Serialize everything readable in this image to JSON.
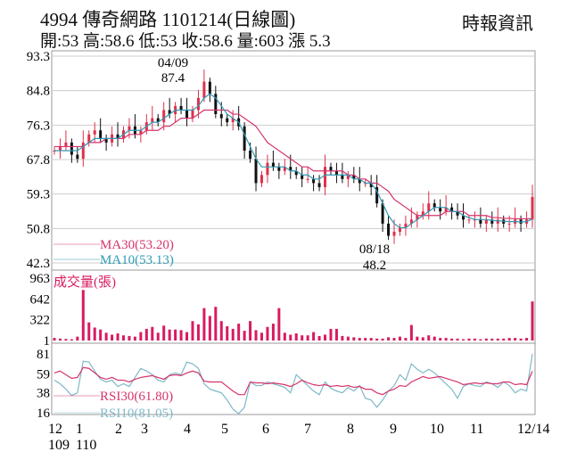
{
  "header": {
    "title": "4994  傳奇網路 1101214(日線圖)",
    "source": "時報資訊",
    "ohlc": "開:53 高:58.6 低:53 收:58.6 量:603 漲 5.3"
  },
  "colors": {
    "up": "#e0304a",
    "down": "#111111",
    "ma30": "#d6336c",
    "ma10": "#2f9bb5",
    "volume": "#d81b60",
    "rsi30": "#d6336c",
    "rsi10": "#7fb8c8",
    "grid": "#cccccc"
  },
  "chart_data": [
    {
      "type": "candlestick",
      "panel": "price",
      "ylim": [
        42.3,
        93.3
      ],
      "yticks": [
        "93.3",
        "84.8",
        "76.3",
        "67.8",
        "59.3",
        "50.8",
        "42.3"
      ],
      "annotations": [
        {
          "date": "04/09",
          "value": "87.4",
          "label_date": "04/09",
          "label_value": "87.4"
        },
        {
          "date": "08/18",
          "value": "48.2",
          "label_date": "08/18",
          "label_value": "48.2"
        }
      ],
      "legend": [
        {
          "name": "MA30(53.20)",
          "key": "ma30"
        },
        {
          "name": "MA10(53.13)",
          "key": "ma10"
        }
      ],
      "close": [
        70,
        71,
        72,
        69,
        68,
        72,
        74,
        75,
        73,
        72,
        74,
        73,
        75,
        76,
        74,
        75,
        77,
        78,
        77,
        80,
        79,
        81,
        80,
        78,
        80,
        83,
        87,
        84,
        79,
        78,
        77,
        78,
        76,
        70,
        68,
        62,
        64,
        67,
        66,
        65,
        66,
        65,
        64,
        63,
        63,
        62,
        61,
        66,
        65,
        64,
        63,
        64,
        63,
        62,
        62,
        61,
        57,
        52,
        49,
        50,
        51,
        52,
        53,
        54,
        55,
        57,
        56,
        55,
        56,
        55,
        54,
        53,
        53,
        53,
        52,
        53,
        52,
        53,
        52,
        52,
        53,
        52,
        53,
        58.6
      ],
      "ma30": [
        71,
        71,
        71,
        71,
        71,
        71,
        72,
        72,
        72,
        73,
        73,
        73,
        73,
        74,
        74,
        74,
        75,
        75,
        75,
        76,
        76,
        77,
        78,
        78,
        78,
        79,
        80,
        80,
        80,
        80,
        80,
        79,
        79,
        78,
        77,
        76,
        74,
        72,
        71,
        70,
        69,
        68,
        67,
        66,
        66,
        65,
        65,
        65,
        65,
        65,
        65,
        64,
        64,
        63,
        63,
        62,
        62,
        61,
        60,
        58,
        57,
        56,
        55,
        54,
        54,
        54,
        54,
        54,
        55,
        55,
        55,
        55,
        54,
        54,
        54,
        54,
        53.5,
        53.5,
        53.3,
        53.3,
        53.2,
        53.2,
        53.2,
        53.2
      ],
      "ma10": [
        70,
        70,
        70,
        70,
        70,
        71,
        72,
        73,
        73,
        73,
        73,
        73,
        74,
        75,
        75,
        75,
        76,
        77,
        77,
        78,
        79,
        80,
        80,
        80,
        80,
        81,
        83,
        84,
        83,
        81,
        79,
        78,
        77,
        74,
        71,
        68,
        66,
        66,
        66,
        66,
        66,
        65,
        65,
        64,
        64,
        63,
        63,
        64,
        64,
        64,
        64,
        64,
        63,
        63,
        62,
        62,
        60,
        57,
        54,
        52,
        51,
        51,
        52,
        53,
        54,
        55,
        56,
        56,
        56,
        55,
        55,
        54,
        53.5,
        53,
        53,
        53,
        52.8,
        52.7,
        52.6,
        52.5,
        52.5,
        52.4,
        52.5,
        53.13
      ]
    },
    {
      "type": "bar",
      "panel": "volume",
      "title": "成交量(張)",
      "ylim": [
        0,
        963
      ],
      "yticks": [
        "963",
        "642",
        "322",
        "1"
      ],
      "values": [
        40,
        30,
        25,
        20,
        60,
        780,
        280,
        200,
        170,
        120,
        90,
        110,
        80,
        70,
        60,
        130,
        180,
        210,
        120,
        230,
        170,
        170,
        160,
        130,
        300,
        250,
        500,
        380,
        520,
        300,
        220,
        180,
        260,
        150,
        300,
        160,
        120,
        210,
        260,
        500,
        120,
        90,
        110,
        80,
        80,
        130,
        70,
        90,
        180,
        180,
        70,
        60,
        50,
        40,
        40,
        40,
        30,
        30,
        50,
        40,
        60,
        40,
        240,
        60,
        50,
        80,
        60,
        40,
        40,
        30,
        30,
        20,
        30,
        30,
        20,
        30,
        30,
        30,
        30,
        40,
        40,
        30,
        40,
        603
      ]
    },
    {
      "type": "line",
      "panel": "rsi",
      "ylim": [
        16,
        81
      ],
      "yticks": [
        "81",
        "59",
        "38",
        "16"
      ],
      "series": [
        {
          "name": "RSI30(61.80)",
          "key": "rsi30",
          "values": [
            60,
            62,
            58,
            54,
            55,
            66,
            65,
            60,
            55,
            53,
            55,
            52,
            52,
            50,
            53,
            55,
            56,
            57,
            55,
            53,
            57,
            58,
            57,
            60,
            62,
            60,
            51,
            50,
            50,
            50,
            45,
            40,
            36,
            36,
            50,
            49,
            49,
            48,
            49,
            48,
            47,
            45,
            48,
            52,
            49,
            47,
            46,
            47,
            45,
            46,
            45,
            46,
            44,
            45,
            42,
            42,
            38,
            36,
            40,
            42,
            46,
            45,
            50,
            53,
            56,
            54,
            55,
            56,
            54,
            52,
            50,
            47,
            48,
            49,
            48,
            49,
            48,
            48,
            50,
            50,
            47,
            48,
            47,
            61.8
          ]
        },
        {
          "name": "RSI10(81.05)",
          "key": "rsi10",
          "values": [
            52,
            48,
            42,
            35,
            38,
            73,
            72,
            62,
            53,
            50,
            52,
            45,
            48,
            45,
            55,
            65,
            62,
            58,
            52,
            50,
            58,
            60,
            58,
            72,
            70,
            65,
            48,
            42,
            40,
            38,
            30,
            20,
            15,
            22,
            50,
            46,
            46,
            50,
            48,
            46,
            44,
            38,
            58,
            52,
            46,
            40,
            36,
            50,
            43,
            40,
            38,
            44,
            40,
            46,
            32,
            30,
            22,
            30,
            40,
            46,
            58,
            52,
            70,
            64,
            60,
            64,
            60,
            54,
            48,
            42,
            32,
            45,
            48,
            46,
            45,
            50,
            48,
            44,
            50,
            46,
            38,
            42,
            40,
            81.05
          ]
        }
      ]
    }
  ],
  "xaxis": {
    "months": [
      "12",
      "1",
      "2",
      "3",
      "4",
      "5",
      "6",
      "7",
      "8",
      "9",
      "10",
      "11",
      "12/14"
    ],
    "years": [
      "109",
      "110"
    ]
  }
}
